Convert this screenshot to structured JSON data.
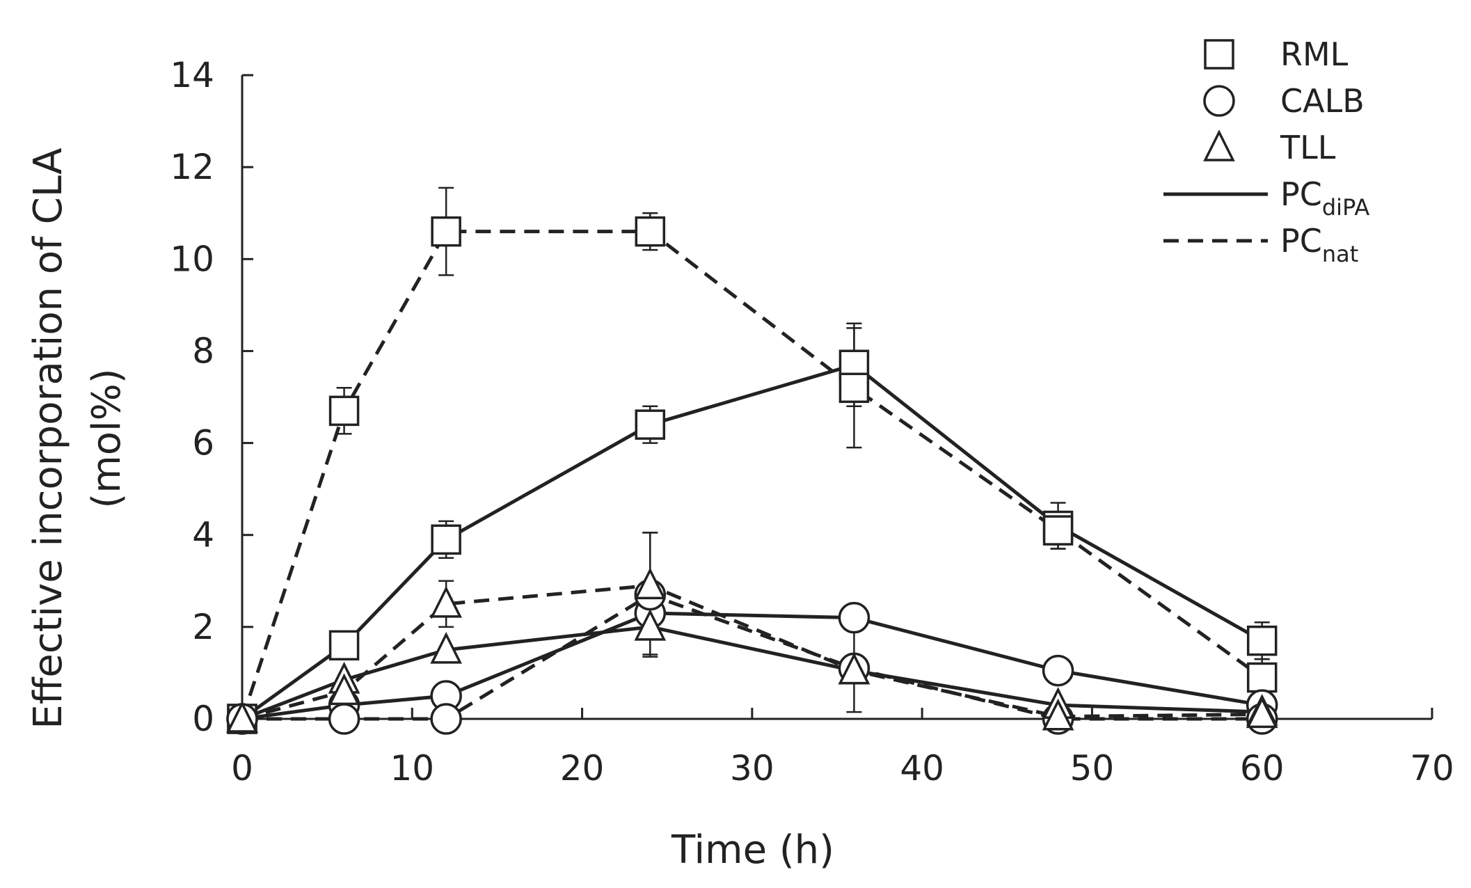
{
  "chart_data": {
    "type": "line",
    "title": "",
    "xlabel": "Time (h)",
    "ylabel_line1": "Effective incorporation of CLA",
    "ylabel_line2": "(mol%)",
    "xlim": [
      0,
      70
    ],
    "ylim": [
      0,
      14
    ],
    "xticks": [
      0,
      10,
      20,
      30,
      40,
      50,
      60,
      70
    ],
    "yticks": [
      0,
      2,
      4,
      6,
      8,
      10,
      12,
      14
    ],
    "grid": false,
    "legend_position": "top-right",
    "legend": {
      "markers": [
        {
          "marker": "square",
          "label": "RML"
        },
        {
          "marker": "circle",
          "label": "CALB"
        },
        {
          "marker": "triangle",
          "label": "TLL"
        }
      ],
      "lines": [
        {
          "style": "solid",
          "label": "PC",
          "subscript": "diPA"
        },
        {
          "style": "dashed",
          "label": "PC",
          "subscript": "nat"
        }
      ]
    },
    "series": [
      {
        "name": "RML PCdiPA",
        "enzyme": "RML",
        "marker": "square",
        "line": "solid",
        "x": [
          0,
          6,
          12,
          24,
          36,
          48,
          60
        ],
        "y": [
          0,
          1.6,
          3.9,
          6.4,
          7.7,
          4.2,
          1.7
        ],
        "err": [
          0,
          0.1,
          0.4,
          0.4,
          0.9,
          0.5,
          0.4
        ]
      },
      {
        "name": "RML PCnat",
        "enzyme": "RML",
        "marker": "square",
        "line": "dashed",
        "x": [
          0,
          6,
          12,
          24,
          36,
          48,
          60
        ],
        "y": [
          0,
          6.7,
          10.6,
          10.6,
          7.2,
          4.1,
          0.9
        ],
        "err": [
          0,
          0.5,
          0.95,
          0.4,
          1.3,
          0.4,
          0.4
        ]
      },
      {
        "name": "CALB PCdiPA",
        "enzyme": "CALB",
        "marker": "circle",
        "line": "solid",
        "x": [
          0,
          6,
          12,
          24,
          36,
          48,
          60
        ],
        "y": [
          0,
          0.3,
          0.5,
          2.3,
          2.2,
          1.05,
          0.3
        ],
        "err": [
          0,
          0,
          0,
          0,
          0,
          0,
          0
        ]
      },
      {
        "name": "CALB PCnat",
        "enzyme": "CALB",
        "marker": "circle",
        "line": "dashed",
        "x": [
          0,
          6,
          12,
          24,
          36,
          48,
          60
        ],
        "y": [
          0,
          0,
          0,
          2.7,
          1.1,
          0,
          0
        ],
        "err": [
          0,
          0,
          0,
          1.35,
          0.95,
          0,
          0
        ]
      },
      {
        "name": "TLL PCdiPA",
        "enzyme": "TLL",
        "marker": "triangle",
        "line": "solid",
        "x": [
          0,
          6,
          12,
          24,
          36,
          48,
          60
        ],
        "y": [
          0,
          0.85,
          1.5,
          2.0,
          1.05,
          0.3,
          0.15
        ],
        "err": [
          0,
          0,
          0,
          0.6,
          0,
          0,
          0
        ]
      },
      {
        "name": "TLL PCnat",
        "enzyme": "TLL",
        "marker": "triangle",
        "line": "dashed",
        "x": [
          0,
          6,
          12,
          24,
          36,
          48,
          60
        ],
        "y": [
          0,
          0.6,
          2.5,
          2.9,
          1.05,
          0.05,
          0.1
        ],
        "err": [
          0,
          0,
          0.5,
          1.15,
          0,
          0,
          0
        ]
      }
    ]
  }
}
